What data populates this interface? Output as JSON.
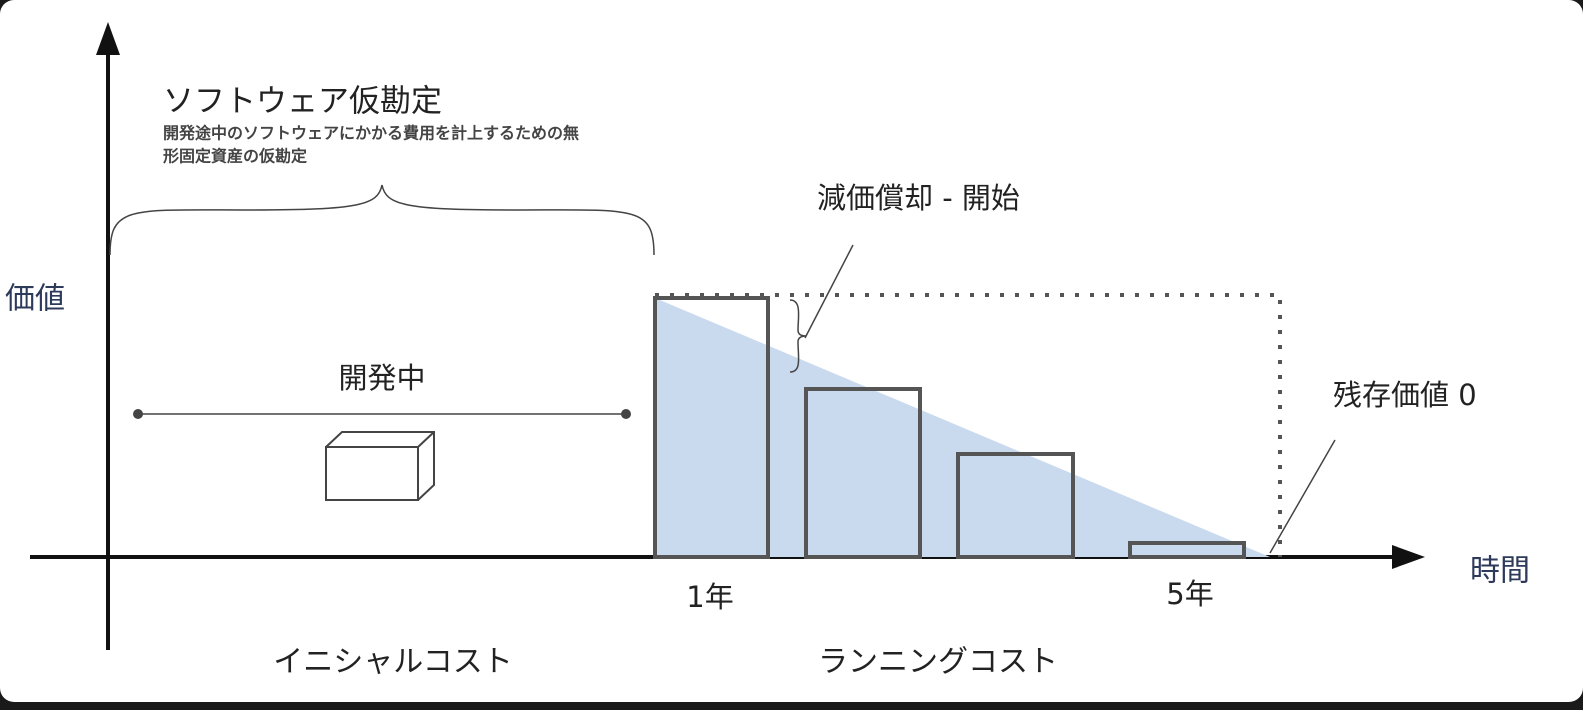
{
  "axes": {
    "y_label": "価値",
    "x_label": "時間"
  },
  "software_wip": {
    "title": "ソフトウェア仮勘定",
    "description": [
      "開発途中のソフトウェアにかかる費用を計上するための無",
      "形固定資産の仮勘定"
    ]
  },
  "development": {
    "label": "開発中"
  },
  "depreciation": {
    "label": "減価償却 - 開始"
  },
  "residual": {
    "label": "残存価値 0"
  },
  "years": [
    "1年",
    "5年"
  ],
  "phases": [
    "イニシャルコスト",
    "ランニングコスト"
  ]
}
